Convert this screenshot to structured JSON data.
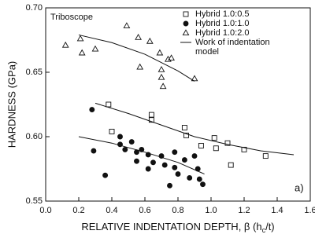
{
  "chart_data": {
    "type": "scatter",
    "annotation": "Triboscope",
    "panel_label": "a)",
    "y_label": "HARDNESS (GPa)",
    "x_label": [
      "RELATIVE INDENTATION DEPTH, β (h",
      "c",
      "/t)"
    ],
    "xlim": [
      0,
      1.6
    ],
    "ylim": [
      0.55,
      0.7
    ],
    "xticks": [
      {
        "value": 0,
        "label": "0.0"
      },
      0.2,
      0.4,
      0.6,
      0.8,
      {
        "value": 1,
        "label": "1.0"
      },
      1.2,
      1.4,
      1.6
    ],
    "yticks": [
      0.55,
      {
        "value": 0.6,
        "label": "0.60"
      },
      0.65,
      {
        "value": 0.7,
        "label": "0.70"
      }
    ],
    "legend": "upper right",
    "series": [
      {
        "name": "Hybrid 1.0:0.5",
        "marker": "square",
        "filled": false,
        "color": "#111111",
        "x": [
          0.38,
          0.64,
          0.64,
          0.4,
          0.84,
          0.85,
          0.94,
          1.02,
          1.03,
          1.1,
          1.12,
          1.2,
          1.33
        ],
        "values": [
          0.625,
          0.617,
          0.613,
          0.604,
          0.607,
          0.601,
          0.593,
          0.599,
          0.591,
          0.595,
          0.578,
          0.59,
          0.585
        ]
      },
      {
        "name": "Hybrid 1.0:1.0",
        "marker": "circle",
        "filled": true,
        "color": "#111111",
        "x": [
          0.28,
          0.29,
          0.36,
          0.45,
          0.45,
          0.48,
          0.52,
          0.55,
          0.55,
          0.58,
          0.62,
          0.62,
          0.65,
          0.7,
          0.72,
          0.75,
          0.78,
          0.78,
          0.8,
          0.84,
          0.87,
          0.9,
          0.92,
          0.93,
          0.95
        ],
        "values": [
          0.621,
          0.589,
          0.57,
          0.6,
          0.594,
          0.59,
          0.596,
          0.588,
          0.581,
          0.59,
          0.586,
          0.575,
          0.58,
          0.585,
          0.578,
          0.562,
          0.576,
          0.588,
          0.571,
          0.582,
          0.568,
          0.585,
          0.575,
          0.567,
          0.563
        ]
      },
      {
        "name": "Hybrid 1.0:2.0",
        "marker": "triangle",
        "filled": false,
        "color": "#111111",
        "x": [
          0.12,
          0.21,
          0.22,
          0.3,
          0.49,
          0.56,
          0.63,
          0.57,
          0.69,
          0.7,
          0.7,
          0.71,
          0.74,
          0.76,
          0.9
        ],
        "values": [
          0.671,
          0.676,
          0.665,
          0.668,
          0.686,
          0.677,
          0.674,
          0.654,
          0.665,
          0.652,
          0.646,
          0.639,
          0.66,
          0.661,
          0.645
        ]
      }
    ],
    "model": {
      "name": [
        "Work of indentation",
        "model"
      ],
      "color": "#111111",
      "curves": [
        {
          "x": [
            0.2,
            0.4,
            0.6,
            0.8,
            0.9
          ],
          "values": [
            0.679,
            0.673,
            0.664,
            0.651,
            0.643
          ]
        },
        {
          "x": [
            0.3,
            0.5,
            0.7,
            0.9,
            1.1,
            1.3,
            1.5
          ],
          "values": [
            0.626,
            0.618,
            0.609,
            0.6,
            0.594,
            0.589,
            0.586
          ]
        },
        {
          "x": [
            0.2,
            0.4,
            0.6,
            0.8,
            0.96
          ],
          "values": [
            0.6,
            0.595,
            0.588,
            0.58,
            0.571
          ]
        }
      ]
    }
  }
}
